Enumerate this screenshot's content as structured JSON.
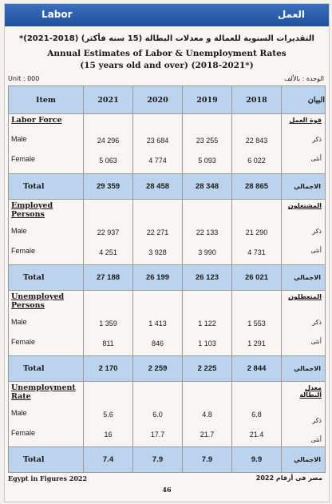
{
  "header": {
    "left_title": "Labor",
    "right_title": "العمل"
  },
  "title_ar": "التقديرات السنوية للعمالة و معدلات البطالة (15 سنه فأكثر)  (2018-2021)*",
  "title_en": "Annual Estimates of Labor & Unemployment Rates",
  "subtitle": "(15 years old and over)  (2018-2021*)",
  "unit_en": "Unit : 000",
  "unit_ar": "الوحدة : بالألف",
  "table": {
    "headers": {
      "item": "Item",
      "years": [
        "2021",
        "2020",
        "2019",
        "2018"
      ],
      "item_ar": "البيان"
    },
    "row_labels": {
      "male": "Male",
      "female": "Female",
      "total": "Total",
      "male_ar": "ذكر",
      "female_ar": "أنثى",
      "total_ar": "الاجمالي"
    },
    "sections": [
      {
        "label": "Labor Force",
        "label_ar": "قوة العمل",
        "male": [
          "24 296",
          "23 684",
          "23 255",
          "22 843"
        ],
        "female": [
          "5 063",
          "4 774",
          "5 093",
          "6 022"
        ],
        "total": [
          "29 359",
          "28 458",
          "28 348",
          "28 865"
        ]
      },
      {
        "label": "Employed Persons",
        "label_ar": "المشتغلون",
        "male": [
          "22 937",
          "22 271",
          "22 133",
          "21 290"
        ],
        "female": [
          "4 251",
          "3 928",
          "3 990",
          "4 731"
        ],
        "total": [
          "27 188",
          "26 199",
          "26 123",
          "26 021"
        ]
      },
      {
        "label": "Unemployed Persons",
        "label_ar": "المتعطلون",
        "male": [
          "1 359",
          "1 413",
          "1 122",
          "1 553"
        ],
        "female": [
          "811",
          "846",
          "1 103",
          "1 291"
        ],
        "total": [
          "2 170",
          "2 259",
          "2 225",
          "2 844"
        ]
      },
      {
        "label": "Unemployment Rate",
        "label_ar": "معدل البطالة",
        "male": [
          "5.6",
          "6.0",
          "4.8",
          "6.8"
        ],
        "female": [
          "16",
          "17.7",
          "21.7",
          "21.4"
        ],
        "total": [
          "7.4",
          "7.9",
          "7.9",
          "9.9"
        ]
      }
    ]
  },
  "footer": {
    "left": "Egypt in Figures 2022",
    "right": "مصر فى أرقام 2022",
    "page": "46"
  }
}
